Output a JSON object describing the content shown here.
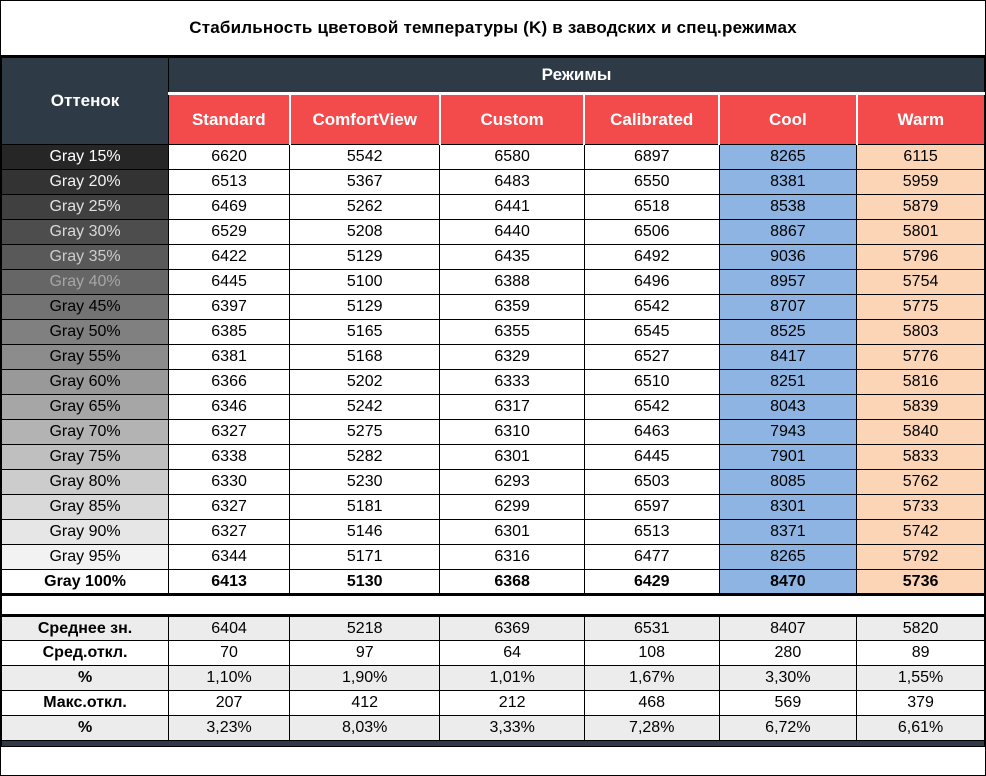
{
  "title": "Стабильность цветовой температуры (K) в заводских и спец.режимах",
  "colors": {
    "header_bg": "#2E3A46",
    "mode_header_bg": "#F34B4B",
    "header_text": "#ffffff",
    "cool_column_bg": "#8DB4E2",
    "warm_column_bg": "#FBD5B5",
    "summary_alt_bg": "#ECECEC",
    "summary_white_bg": "#FFFFFF"
  },
  "table": {
    "corner_label": "Оттенок",
    "group_header": "Режимы",
    "modes": [
      "Standard",
      "ComfortView",
      "Custom",
      "Calibrated",
      "Cool",
      "Warm"
    ],
    "rows": [
      {
        "label": "Gray 15%",
        "bg": "#262626",
        "fg": "#ffffff",
        "bold": false,
        "values": [
          6620,
          5542,
          6580,
          6897,
          8265,
          6115
        ]
      },
      {
        "label": "Gray 20%",
        "bg": "#333333",
        "fg": "#f2f2f2",
        "bold": false,
        "values": [
          6513,
          5367,
          6483,
          6550,
          8381,
          5959
        ]
      },
      {
        "label": "Gray 25%",
        "bg": "#404040",
        "fg": "#e0e0e0",
        "bold": false,
        "values": [
          6469,
          5262,
          6441,
          6518,
          8538,
          5879
        ]
      },
      {
        "label": "Gray 30%",
        "bg": "#4d4d4d",
        "fg": "#d9d9d9",
        "bold": false,
        "values": [
          6529,
          5208,
          6440,
          6506,
          8867,
          5801
        ]
      },
      {
        "label": "Gray 35%",
        "bg": "#595959",
        "fg": "#cccccc",
        "bold": false,
        "values": [
          6422,
          5129,
          6435,
          6492,
          9036,
          5796
        ]
      },
      {
        "label": "Gray 40%",
        "bg": "#666666",
        "fg": "#a6a6a6",
        "bold": false,
        "values": [
          6445,
          5100,
          6388,
          6496,
          8957,
          5754
        ]
      },
      {
        "label": "Gray 45%",
        "bg": "#737373",
        "fg": "#000000",
        "bold": false,
        "values": [
          6397,
          5129,
          6359,
          6542,
          8707,
          5775
        ]
      },
      {
        "label": "Gray 50%",
        "bg": "#808080",
        "fg": "#000000",
        "bold": false,
        "values": [
          6385,
          5165,
          6355,
          6545,
          8525,
          5803
        ]
      },
      {
        "label": "Gray 55%",
        "bg": "#8c8c8c",
        "fg": "#000000",
        "bold": false,
        "values": [
          6381,
          5168,
          6329,
          6527,
          8417,
          5776
        ]
      },
      {
        "label": "Gray 60%",
        "bg": "#999999",
        "fg": "#000000",
        "bold": false,
        "values": [
          6366,
          5202,
          6333,
          6510,
          8251,
          5816
        ]
      },
      {
        "label": "Gray 65%",
        "bg": "#a6a6a6",
        "fg": "#000000",
        "bold": false,
        "values": [
          6346,
          5242,
          6317,
          6542,
          8043,
          5839
        ]
      },
      {
        "label": "Gray 70%",
        "bg": "#b3b3b3",
        "fg": "#000000",
        "bold": false,
        "values": [
          6327,
          5275,
          6310,
          6463,
          7943,
          5840
        ]
      },
      {
        "label": "Gray 75%",
        "bg": "#bfbfbf",
        "fg": "#000000",
        "bold": false,
        "values": [
          6338,
          5282,
          6301,
          6445,
          7901,
          5833
        ]
      },
      {
        "label": "Gray 80%",
        "bg": "#cccccc",
        "fg": "#000000",
        "bold": false,
        "values": [
          6330,
          5230,
          6293,
          6503,
          8085,
          5762
        ]
      },
      {
        "label": "Gray 85%",
        "bg": "#d9d9d9",
        "fg": "#000000",
        "bold": false,
        "values": [
          6327,
          5181,
          6299,
          6597,
          8301,
          5733
        ]
      },
      {
        "label": "Gray 90%",
        "bg": "#e6e6e6",
        "fg": "#000000",
        "bold": false,
        "values": [
          6327,
          5146,
          6301,
          6513,
          8371,
          5742
        ]
      },
      {
        "label": "Gray 95%",
        "bg": "#f2f2f2",
        "fg": "#000000",
        "bold": false,
        "values": [
          6344,
          5171,
          6316,
          6477,
          8265,
          5792
        ]
      },
      {
        "label": "Gray 100%",
        "bg": "#ffffff",
        "fg": "#000000",
        "bold": true,
        "values": [
          6413,
          5130,
          6368,
          6429,
          8470,
          5736
        ]
      }
    ],
    "summary": [
      {
        "label": "Среднее зн.",
        "values": [
          "6404",
          "5218",
          "6369",
          "6531",
          "8407",
          "5820"
        ]
      },
      {
        "label": "Сред.откл.",
        "values": [
          "70",
          "97",
          "64",
          "108",
          "280",
          "89"
        ]
      },
      {
        "label": "%",
        "values": [
          "1,10%",
          "1,90%",
          "1,01%",
          "1,67%",
          "3,30%",
          "1,55%"
        ]
      },
      {
        "label": "Макс.откл.",
        "values": [
          "207",
          "412",
          "212",
          "468",
          "569",
          "379"
        ]
      },
      {
        "label": "%",
        "values": [
          "3,23%",
          "8,03%",
          "3,33%",
          "7,28%",
          "6,72%",
          "6,61%"
        ]
      }
    ]
  }
}
